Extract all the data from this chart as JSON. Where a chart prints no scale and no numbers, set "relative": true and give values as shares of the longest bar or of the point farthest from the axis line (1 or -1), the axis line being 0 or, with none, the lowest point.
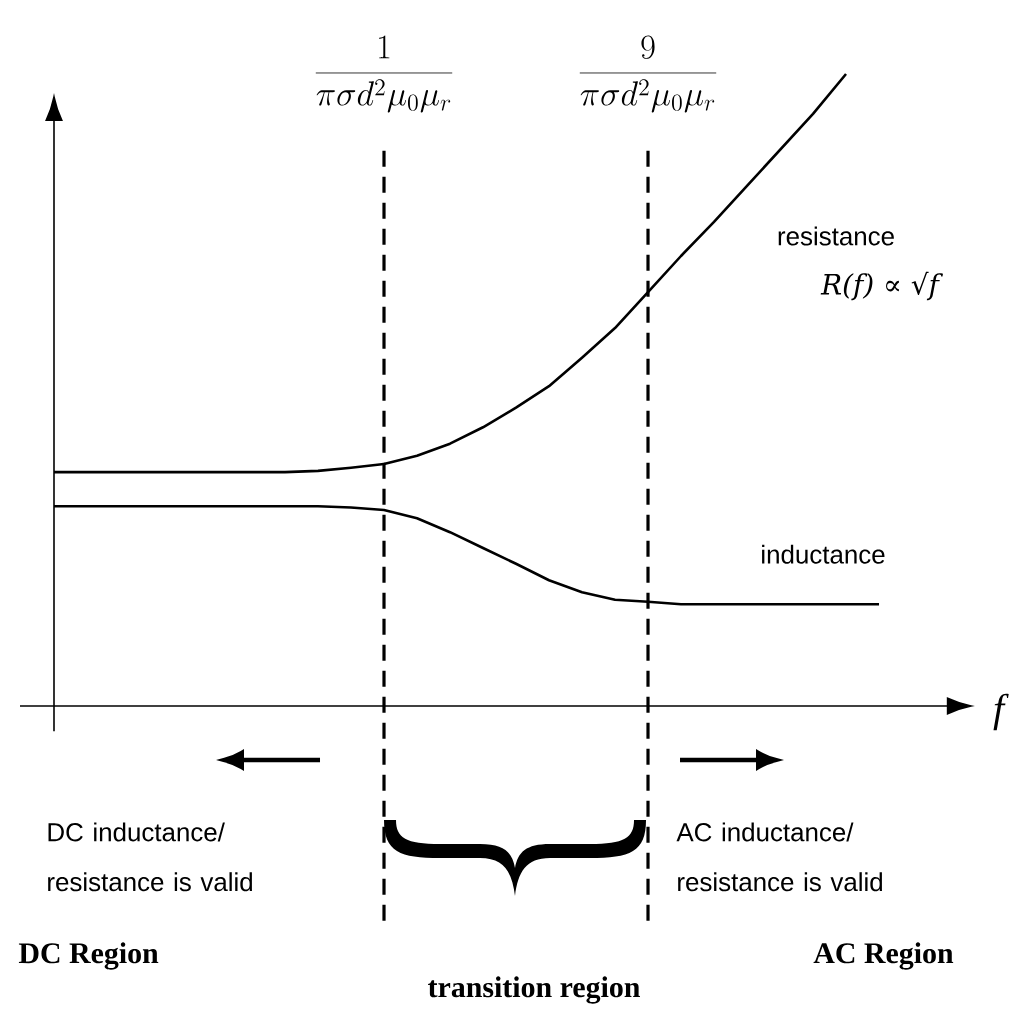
{
  "chart_data": {
    "type": "line",
    "relative": true,
    "xlabel": "f",
    "marker": "none",
    "line_style": "solid",
    "categories": [
      null,
      null,
      null,
      null,
      null,
      null,
      null,
      null,
      null,
      null,
      null,
      null,
      null,
      null,
      null,
      null,
      null,
      null,
      null,
      null,
      null,
      null,
      null,
      null,
      null,
      null
    ],
    "series": [
      {
        "name": "resistance",
        "color": "#000000",
        "values": [
          0.37,
          0.37,
          0.37,
          0.37,
          0.37,
          0.37,
          0.37,
          0.37,
          0.372,
          0.377,
          0.383,
          0.396,
          0.415,
          0.441,
          0.472,
          0.506,
          0.551,
          0.598,
          0.655,
          0.712,
          0.766,
          0.823,
          0.88,
          0.937,
          1.0,
          null
        ]
      },
      {
        "name": "inductance",
        "color": "#000000",
        "values": [
          0.316,
          0.316,
          0.316,
          0.316,
          0.316,
          0.316,
          0.316,
          0.316,
          0.316,
          0.314,
          0.31,
          0.297,
          0.275,
          0.25,
          0.225,
          0.199,
          0.18,
          0.168,
          0.165,
          0.161,
          0.161,
          0.161,
          0.161,
          0.161,
          0.161,
          0.161
        ]
      }
    ],
    "annotations": [
      "R(f) ∝ √f",
      "DC inductance/ resistance is valid",
      "DC Region",
      "transition region",
      "AC inductance/ resistance is valid",
      "AC Region",
      "\\frac{1}{\\pi\\sigma d^{2}\\mu_{0}\\mu_{r}}",
      "\\frac{9}{\\pi\\sigma d^{2}\\mu_{0}\\mu_{r}}"
    ]
  }
}
